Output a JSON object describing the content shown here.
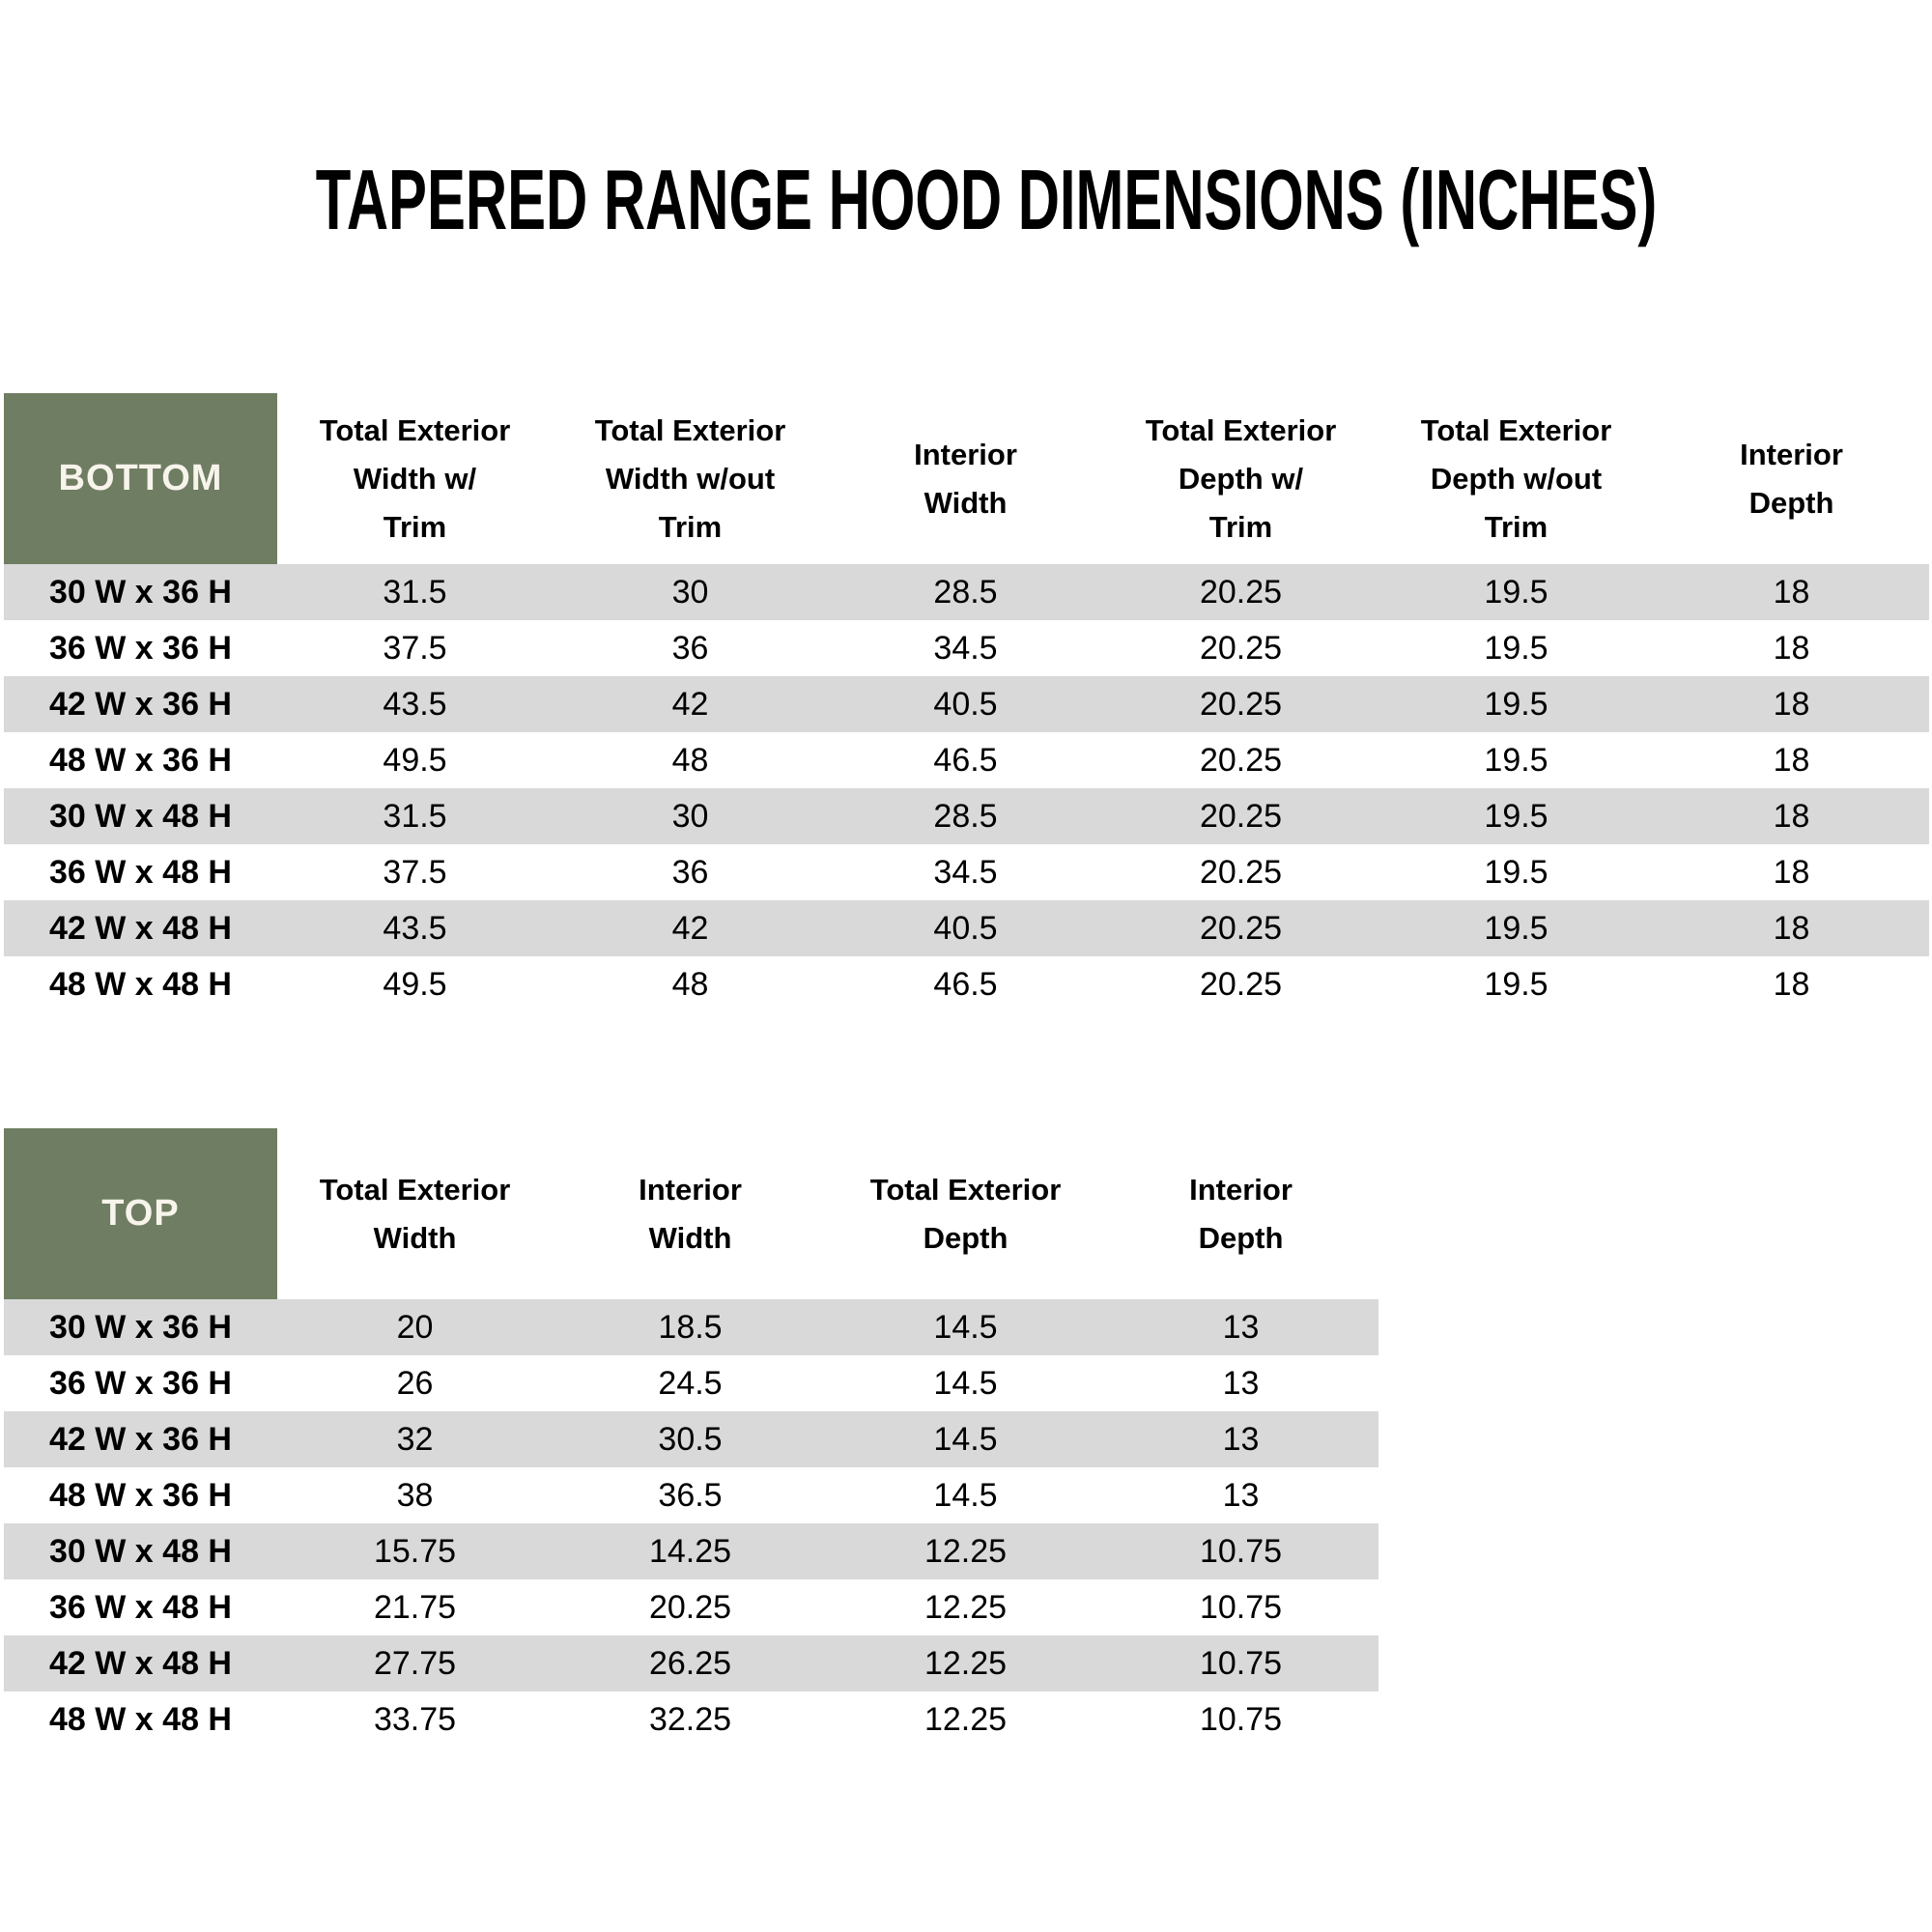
{
  "title": "TAPERED RANGE HOOD DIMENSIONS (INCHES)",
  "colors": {
    "header_green": "#6F7D62",
    "row_stripe": "#D9D9D9",
    "header_label_text": "#F7F4EC",
    "body_text": "#000000"
  },
  "bottom_table": {
    "label": "BOTTOM",
    "columns": [
      "Total Exterior\nWidth w/\nTrim",
      "Total Exterior\nWidth w/out\nTrim",
      "Interior\nWidth",
      "Total Exterior\nDepth w/\nTrim",
      "Total Exterior\nDepth w/out\nTrim",
      "Interior\nDepth"
    ],
    "rows": [
      {
        "size": "30 W x 36 H",
        "values": [
          "31.5",
          "30",
          "28.5",
          "20.25",
          "19.5",
          "18"
        ]
      },
      {
        "size": "36 W x 36 H",
        "values": [
          "37.5",
          "36",
          "34.5",
          "20.25",
          "19.5",
          "18"
        ]
      },
      {
        "size": "42 W x 36 H",
        "values": [
          "43.5",
          "42",
          "40.5",
          "20.25",
          "19.5",
          "18"
        ]
      },
      {
        "size": "48 W x 36 H",
        "values": [
          "49.5",
          "48",
          "46.5",
          "20.25",
          "19.5",
          "18"
        ]
      },
      {
        "size": "30 W x 48 H",
        "values": [
          "31.5",
          "30",
          "28.5",
          "20.25",
          "19.5",
          "18"
        ]
      },
      {
        "size": "36 W x 48 H",
        "values": [
          "37.5",
          "36",
          "34.5",
          "20.25",
          "19.5",
          "18"
        ]
      },
      {
        "size": "42 W x 48 H",
        "values": [
          "43.5",
          "42",
          "40.5",
          "20.25",
          "19.5",
          "18"
        ]
      },
      {
        "size": "48 W x 48 H",
        "values": [
          "49.5",
          "48",
          "46.5",
          "20.25",
          "19.5",
          "18"
        ]
      }
    ]
  },
  "top_table": {
    "label": "TOP",
    "columns": [
      "Total Exterior\nWidth",
      "Interior\nWidth",
      "Total Exterior\nDepth",
      "Interior\nDepth"
    ],
    "rows": [
      {
        "size": "30 W x 36 H",
        "values": [
          "20",
          "18.5",
          "14.5",
          "13"
        ]
      },
      {
        "size": "36 W x 36 H",
        "values": [
          "26",
          "24.5",
          "14.5",
          "13"
        ]
      },
      {
        "size": "42 W x 36 H",
        "values": [
          "32",
          "30.5",
          "14.5",
          "13"
        ]
      },
      {
        "size": "48 W x 36 H",
        "values": [
          "38",
          "36.5",
          "14.5",
          "13"
        ]
      },
      {
        "size": "30 W x 48 H",
        "values": [
          "15.75",
          "14.25",
          "12.25",
          "10.75"
        ]
      },
      {
        "size": "36 W x 48 H",
        "values": [
          "21.75",
          "20.25",
          "12.25",
          "10.75"
        ]
      },
      {
        "size": "42 W x 48 H",
        "values": [
          "27.75",
          "26.25",
          "12.25",
          "10.75"
        ]
      },
      {
        "size": "48 W x 48 H",
        "values": [
          "33.75",
          "32.25",
          "12.25",
          "10.75"
        ]
      }
    ]
  }
}
